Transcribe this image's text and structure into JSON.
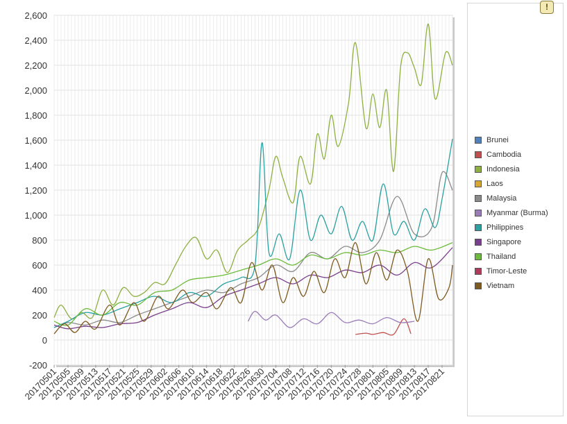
{
  "chart_data": {
    "type": "line",
    "title": "",
    "xlabel": "",
    "ylabel": "",
    "ylim": [
      -200,
      2600
    ],
    "yticks": [
      -200,
      0,
      200,
      400,
      600,
      800,
      1000,
      1200,
      1400,
      1600,
      1800,
      2000,
      2200,
      2400,
      2600
    ],
    "ytick_labels": [
      "-200",
      "0",
      "200",
      "400",
      "600",
      "800",
      "1,000",
      "1,200",
      "1,400",
      "1,600",
      "1,800",
      "2,000",
      "2,200",
      "2,400",
      "2,600"
    ],
    "x_start": "2017-05-01",
    "x_end": "2017-08-24",
    "xtick_labels": [
      "20170501",
      "20170505",
      "20170509",
      "20170513",
      "20170517",
      "20170521",
      "20170525",
      "20170529",
      "20170602",
      "20170606",
      "20170610",
      "20170614",
      "20170618",
      "20170622",
      "20170626",
      "20170630",
      "20170704",
      "20170708",
      "20170712",
      "20170716",
      "20170720",
      "20170724",
      "20170728",
      "20170801",
      "20170805",
      "20170809",
      "20170813",
      "20170817",
      "20170821"
    ],
    "legend_position": "right",
    "grid": true,
    "series": [
      {
        "name": "Brunei",
        "color": "#4f81bd",
        "points": []
      },
      {
        "name": "Cambodia",
        "color": "#c0504d",
        "points": [
          [
            "2017-07-27",
            45
          ],
          [
            "2017-07-30",
            55
          ],
          [
            "2017-08-01",
            45
          ],
          [
            "2017-08-04",
            60
          ],
          [
            "2017-08-07",
            45
          ],
          [
            "2017-08-10",
            170
          ],
          [
            "2017-08-12",
            50
          ]
        ]
      },
      {
        "name": "Indonesia",
        "color": "#8db040",
        "points": [
          [
            "2017-05-01",
            180
          ],
          [
            "2017-05-03",
            280
          ],
          [
            "2017-05-06",
            170
          ],
          [
            "2017-05-09",
            220
          ],
          [
            "2017-05-12",
            180
          ],
          [
            "2017-05-15",
            400
          ],
          [
            "2017-05-18",
            280
          ],
          [
            "2017-05-21",
            420
          ],
          [
            "2017-05-24",
            350
          ],
          [
            "2017-05-27",
            380
          ],
          [
            "2017-05-30",
            460
          ],
          [
            "2017-06-02",
            450
          ],
          [
            "2017-06-05",
            600
          ],
          [
            "2017-06-08",
            750
          ],
          [
            "2017-06-11",
            820
          ],
          [
            "2017-06-14",
            650
          ],
          [
            "2017-06-17",
            720
          ],
          [
            "2017-06-20",
            540
          ],
          [
            "2017-06-23",
            720
          ],
          [
            "2017-06-26",
            800
          ],
          [
            "2017-06-29",
            900
          ],
          [
            "2017-07-02",
            1200
          ],
          [
            "2017-07-04",
            1470
          ],
          [
            "2017-07-06",
            1300
          ],
          [
            "2017-07-09",
            1100
          ],
          [
            "2017-07-11",
            1470
          ],
          [
            "2017-07-14",
            1250
          ],
          [
            "2017-07-16",
            1650
          ],
          [
            "2017-07-18",
            1450
          ],
          [
            "2017-07-20",
            1800
          ],
          [
            "2017-07-22",
            1550
          ],
          [
            "2017-07-25",
            1900
          ],
          [
            "2017-07-27",
            2380
          ],
          [
            "2017-07-30",
            1700
          ],
          [
            "2017-08-01",
            1970
          ],
          [
            "2017-08-03",
            1700
          ],
          [
            "2017-08-05",
            2000
          ],
          [
            "2017-08-07",
            1350
          ],
          [
            "2017-08-09",
            2180
          ],
          [
            "2017-08-11",
            2300
          ],
          [
            "2017-08-13",
            2180
          ],
          [
            "2017-08-15",
            2050
          ],
          [
            "2017-08-17",
            2530
          ],
          [
            "2017-08-19",
            1930
          ],
          [
            "2017-08-22",
            2300
          ],
          [
            "2017-08-24",
            2200
          ]
        ]
      },
      {
        "name": "Laos",
        "color": "#d9a72e",
        "points": []
      },
      {
        "name": "Malaysia",
        "color": "#8a8a8a",
        "points": [
          [
            "2017-05-01",
            100
          ],
          [
            "2017-05-05",
            140
          ],
          [
            "2017-05-10",
            120
          ],
          [
            "2017-05-15",
            160
          ],
          [
            "2017-05-20",
            140
          ],
          [
            "2017-05-25",
            200
          ],
          [
            "2017-05-30",
            250
          ],
          [
            "2017-06-04",
            300
          ],
          [
            "2017-06-09",
            350
          ],
          [
            "2017-06-14",
            400
          ],
          [
            "2017-06-19",
            380
          ],
          [
            "2017-06-24",
            450
          ],
          [
            "2017-06-29",
            500
          ],
          [
            "2017-07-04",
            600
          ],
          [
            "2017-07-09",
            550
          ],
          [
            "2017-07-14",
            700
          ],
          [
            "2017-07-19",
            650
          ],
          [
            "2017-07-24",
            750
          ],
          [
            "2017-07-29",
            700
          ],
          [
            "2017-08-03",
            800
          ],
          [
            "2017-08-08",
            1150
          ],
          [
            "2017-08-13",
            850
          ],
          [
            "2017-08-18",
            900
          ],
          [
            "2017-08-21",
            1340
          ],
          [
            "2017-08-24",
            1200
          ]
        ]
      },
      {
        "name": "Myanmar (Burma)",
        "color": "#9b7bb8",
        "points": [
          [
            "2017-06-26",
            150
          ],
          [
            "2017-06-28",
            230
          ],
          [
            "2017-07-01",
            160
          ],
          [
            "2017-07-04",
            200
          ],
          [
            "2017-07-08",
            100
          ],
          [
            "2017-07-12",
            170
          ],
          [
            "2017-07-16",
            130
          ],
          [
            "2017-07-20",
            220
          ],
          [
            "2017-07-24",
            140
          ],
          [
            "2017-07-28",
            160
          ],
          [
            "2017-08-01",
            130
          ],
          [
            "2017-08-05",
            180
          ],
          [
            "2017-08-09",
            140
          ],
          [
            "2017-08-13",
            150
          ]
        ]
      },
      {
        "name": "Philippines",
        "color": "#2aa0a0",
        "points": [
          [
            "2017-05-01",
            100
          ],
          [
            "2017-05-05",
            150
          ],
          [
            "2017-05-10",
            220
          ],
          [
            "2017-05-15",
            200
          ],
          [
            "2017-05-20",
            250
          ],
          [
            "2017-05-25",
            300
          ],
          [
            "2017-05-30",
            350
          ],
          [
            "2017-06-04",
            300
          ],
          [
            "2017-06-09",
            380
          ],
          [
            "2017-06-14",
            350
          ],
          [
            "2017-06-19",
            450
          ],
          [
            "2017-06-24",
            500
          ],
          [
            "2017-06-28",
            600
          ],
          [
            "2017-06-30",
            1580
          ],
          [
            "2017-07-02",
            700
          ],
          [
            "2017-07-05",
            850
          ],
          [
            "2017-07-08",
            650
          ],
          [
            "2017-07-11",
            1200
          ],
          [
            "2017-07-14",
            800
          ],
          [
            "2017-07-17",
            1000
          ],
          [
            "2017-07-20",
            850
          ],
          [
            "2017-07-23",
            1070
          ],
          [
            "2017-07-26",
            800
          ],
          [
            "2017-07-29",
            950
          ],
          [
            "2017-08-01",
            800
          ],
          [
            "2017-08-04",
            1250
          ],
          [
            "2017-08-07",
            850
          ],
          [
            "2017-08-10",
            950
          ],
          [
            "2017-08-13",
            800
          ],
          [
            "2017-08-16",
            1050
          ],
          [
            "2017-08-19",
            900
          ],
          [
            "2017-08-21",
            1130
          ],
          [
            "2017-08-24",
            1610
          ]
        ]
      },
      {
        "name": "Singapore",
        "color": "#7a3f8c",
        "points": [
          [
            "2017-05-01",
            120
          ],
          [
            "2017-05-05",
            90
          ],
          [
            "2017-05-10",
            110
          ],
          [
            "2017-05-15",
            100
          ],
          [
            "2017-05-20",
            130
          ],
          [
            "2017-05-25",
            140
          ],
          [
            "2017-05-30",
            200
          ],
          [
            "2017-06-04",
            250
          ],
          [
            "2017-06-09",
            300
          ],
          [
            "2017-06-14",
            260
          ],
          [
            "2017-06-19",
            350
          ],
          [
            "2017-06-24",
            400
          ],
          [
            "2017-06-29",
            450
          ],
          [
            "2017-07-04",
            500
          ],
          [
            "2017-07-09",
            450
          ],
          [
            "2017-07-14",
            520
          ],
          [
            "2017-07-19",
            500
          ],
          [
            "2017-07-24",
            560
          ],
          [
            "2017-07-29",
            540
          ],
          [
            "2017-08-03",
            600
          ],
          [
            "2017-08-08",
            520
          ],
          [
            "2017-08-13",
            620
          ],
          [
            "2017-08-18",
            580
          ],
          [
            "2017-08-24",
            740
          ]
        ]
      },
      {
        "name": "Thailand",
        "color": "#6cbb3c",
        "points": [
          [
            "2017-05-01",
            150
          ],
          [
            "2017-05-05",
            120
          ],
          [
            "2017-05-10",
            250
          ],
          [
            "2017-05-15",
            200
          ],
          [
            "2017-05-20",
            300
          ],
          [
            "2017-05-25",
            280
          ],
          [
            "2017-05-30",
            380
          ],
          [
            "2017-06-04",
            400
          ],
          [
            "2017-06-09",
            480
          ],
          [
            "2017-06-14",
            500
          ],
          [
            "2017-06-19",
            520
          ],
          [
            "2017-06-24",
            560
          ],
          [
            "2017-06-29",
            600
          ],
          [
            "2017-07-04",
            650
          ],
          [
            "2017-07-09",
            600
          ],
          [
            "2017-07-14",
            680
          ],
          [
            "2017-07-19",
            650
          ],
          [
            "2017-07-24",
            700
          ],
          [
            "2017-07-29",
            680
          ],
          [
            "2017-08-03",
            720
          ],
          [
            "2017-08-08",
            700
          ],
          [
            "2017-08-13",
            750
          ],
          [
            "2017-08-18",
            720
          ],
          [
            "2017-08-24",
            780
          ]
        ]
      },
      {
        "name": "Timor-Leste",
        "color": "#b03a5a",
        "points": []
      },
      {
        "name": "Vietnam",
        "color": "#7d5a1e",
        "points": [
          [
            "2017-05-01",
            50
          ],
          [
            "2017-05-04",
            130
          ],
          [
            "2017-05-07",
            60
          ],
          [
            "2017-05-10",
            150
          ],
          [
            "2017-05-13",
            90
          ],
          [
            "2017-05-17",
            280
          ],
          [
            "2017-05-20",
            120
          ],
          [
            "2017-05-24",
            300
          ],
          [
            "2017-05-27",
            150
          ],
          [
            "2017-05-31",
            350
          ],
          [
            "2017-06-03",
            250
          ],
          [
            "2017-06-07",
            400
          ],
          [
            "2017-06-10",
            300
          ],
          [
            "2017-06-14",
            380
          ],
          [
            "2017-06-17",
            250
          ],
          [
            "2017-06-21",
            420
          ],
          [
            "2017-06-24",
            300
          ],
          [
            "2017-06-27",
            620
          ],
          [
            "2017-06-30",
            400
          ],
          [
            "2017-07-03",
            600
          ],
          [
            "2017-07-06",
            300
          ],
          [
            "2017-07-09",
            500
          ],
          [
            "2017-07-12",
            350
          ],
          [
            "2017-07-15",
            550
          ],
          [
            "2017-07-18",
            380
          ],
          [
            "2017-07-21",
            650
          ],
          [
            "2017-07-24",
            500
          ],
          [
            "2017-07-27",
            780
          ],
          [
            "2017-07-30",
            450
          ],
          [
            "2017-08-02",
            700
          ],
          [
            "2017-08-05",
            480
          ],
          [
            "2017-08-08",
            720
          ],
          [
            "2017-08-11",
            550
          ],
          [
            "2017-08-14",
            150
          ],
          [
            "2017-08-17",
            650
          ],
          [
            "2017-08-20",
            330
          ],
          [
            "2017-08-23",
            420
          ],
          [
            "2017-08-24",
            600
          ]
        ]
      }
    ]
  },
  "warning_icon": "!"
}
